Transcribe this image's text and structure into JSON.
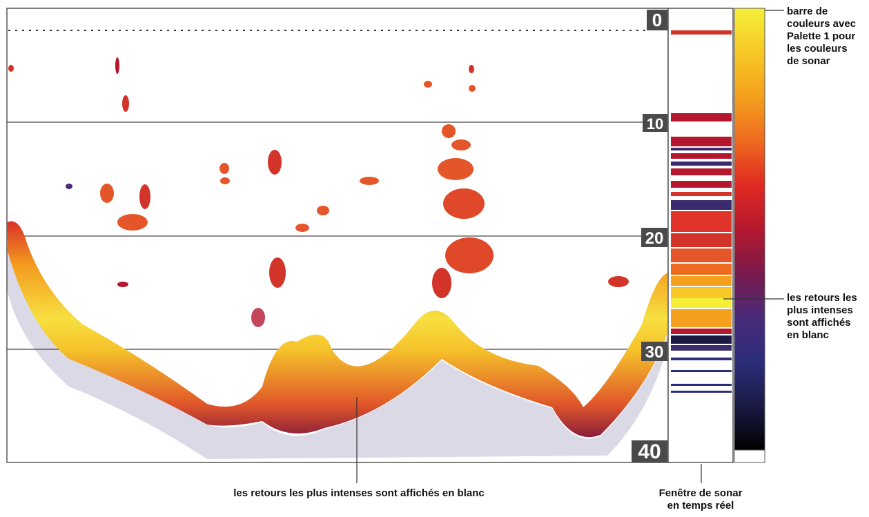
{
  "sonar": {
    "depth_labels": [
      "0",
      "10",
      "20",
      "30",
      "40"
    ],
    "palette_name": "Palette 1",
    "colors": {
      "background": "#ffffff",
      "frame": "#555555",
      "depth_label_bg": "#4a4a4a",
      "depth_label_text": "#ffffff"
    },
    "palette_stops": [
      "#f5ef3a",
      "#f7c825",
      "#f4a01e",
      "#ee6a1f",
      "#e02a22",
      "#b5182e",
      "#7a1a4c",
      "#4a2a7a",
      "#2b2e7a",
      "#1a1a44",
      "#000000"
    ]
  },
  "annotations": {
    "color_bar": "barre de couleurs avec Palette 1 pour les couleurs de sonar",
    "color_bar_lines": [
      "barre de",
      "couleurs avec",
      "Palette 1 pour",
      "les couleurs",
      "de sonar"
    ],
    "strongest_right_lines": [
      "les retours les",
      "plus intenses",
      "sont affichés",
      "en blanc"
    ],
    "strongest_bottom": "les retours les plus intenses sont affichés en blanc",
    "realtime_lines": [
      "Fenêtre de sonar",
      "en temps réel"
    ]
  }
}
